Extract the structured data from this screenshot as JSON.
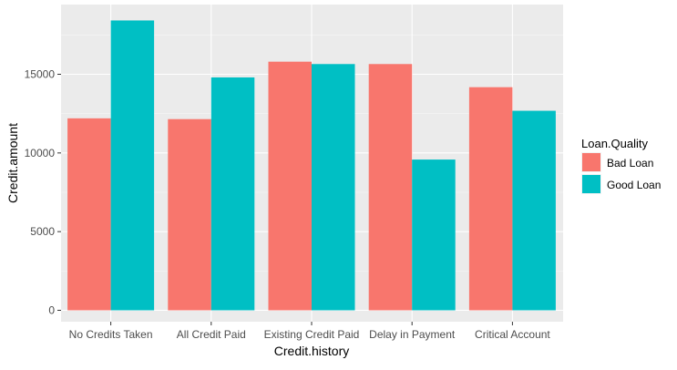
{
  "chart_data": {
    "type": "bar",
    "title": "",
    "xlabel": "Credit.history",
    "ylabel": "Credit.amount",
    "categories": [
      "No Credits Taken",
      "All Credit Paid",
      "Existing Credit Paid",
      "Delay in Payment",
      "Critical Account"
    ],
    "series": [
      {
        "name": "Bad Loan",
        "color": "#F8766D",
        "values": [
          12200,
          12150,
          15800,
          15650,
          14180
        ]
      },
      {
        "name": "Good Loan",
        "color": "#00BFC4",
        "values": [
          18420,
          14800,
          15650,
          9580,
          12680
        ]
      }
    ],
    "ylim": [
      0,
      19000
    ],
    "yticks": [
      0,
      5000,
      10000,
      15000
    ],
    "grid": true,
    "legend": {
      "title": "Loan.Quality",
      "position": "right"
    }
  }
}
